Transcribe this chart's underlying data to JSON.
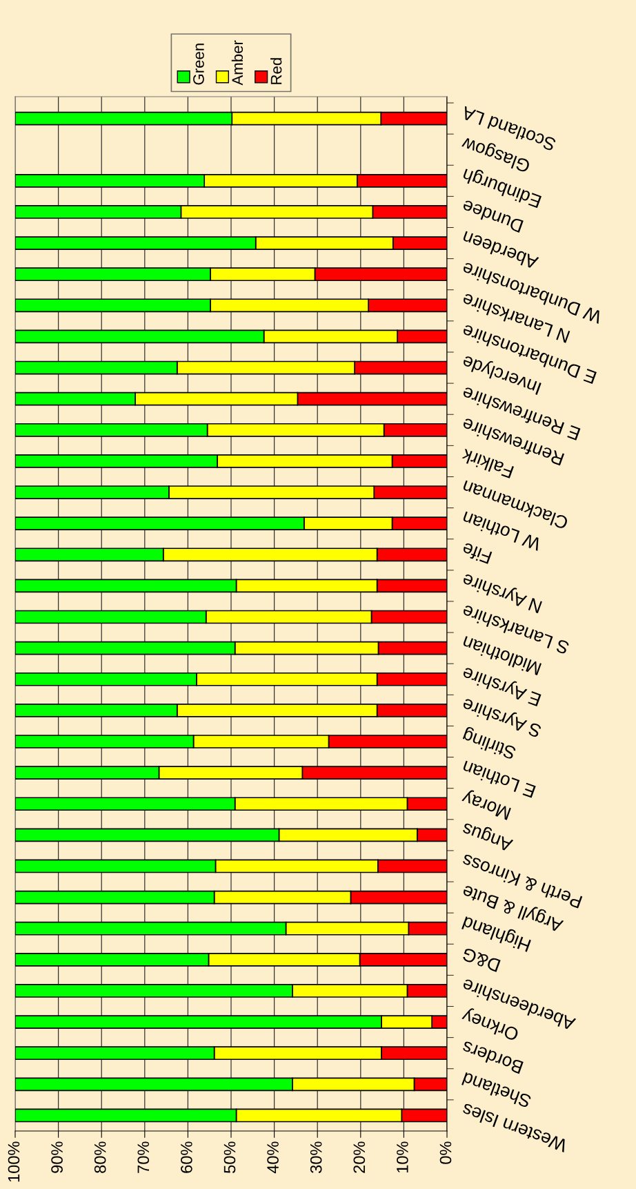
{
  "chart_data": {
    "type": "bar",
    "orientation": "horizontal",
    "stacked": true,
    "categories": [
      "Scotland LA",
      "Glasgow",
      "Edinburgh",
      "Dundee",
      "Aberdeen",
      "W Dunbartonshire",
      "N Lanarkshire",
      "E Dunbartonshire",
      "Inverclyde",
      "E Renfrewshire",
      "Renfrewshire",
      "Falkirk",
      "Clackmannan",
      "W Lothian",
      "Fife",
      "N Ayrshire",
      "S Lanarkshire",
      "Midlothian",
      "E Ayrshire",
      "S Ayrshire",
      "Stirling",
      "E Lothian",
      "Moray",
      "Angus",
      "Perth & Kinross",
      "Argyll & Bute",
      "Highland",
      "D&G",
      "Aberdeenshire",
      "Orkney",
      "Borders",
      "Shetland",
      "Western Isles"
    ],
    "series": [
      {
        "name": "Red",
        "color": "#ff0000",
        "values": [
          15.3,
          null,
          20.8,
          17.2,
          12.5,
          30.6,
          18.2,
          11.5,
          21.4,
          34.6,
          14.6,
          12.7,
          16.9,
          12.7,
          16.2,
          16.2,
          17.5,
          15.9,
          16.2,
          16.2,
          27.4,
          33.5,
          9.2,
          6.9,
          16.0,
          22.3,
          8.9,
          20.2,
          9.2,
          3.5,
          15.2,
          7.6,
          10.5
        ]
      },
      {
        "name": "Amber",
        "color": "#ffff00",
        "values": [
          34.5,
          null,
          35.4,
          44.4,
          31.8,
          24.2,
          36.6,
          30.9,
          41.1,
          37.6,
          40.9,
          40.5,
          47.5,
          20.4,
          49.5,
          32.6,
          38.3,
          33.2,
          41.8,
          46.3,
          31.3,
          33.2,
          39.9,
          32.0,
          37.6,
          31.6,
          28.4,
          35.0,
          26.6,
          11.7,
          38.7,
          28.2,
          38.3
        ]
      },
      {
        "name": "Green",
        "color": "#00ff00",
        "values": [
          50.2,
          null,
          43.8,
          38.4,
          55.7,
          45.2,
          45.2,
          57.6,
          37.5,
          27.8,
          44.5,
          46.8,
          35.6,
          66.9,
          34.3,
          51.2,
          44.2,
          50.9,
          42.0,
          37.5,
          41.3,
          33.3,
          50.9,
          61.1,
          46.4,
          46.1,
          62.7,
          44.8,
          64.2,
          84.8,
          46.1,
          64.2,
          51.2
        ]
      }
    ],
    "xlim": [
      100,
      0
    ],
    "xticks": [
      {
        "value": 100,
        "label": "100%"
      },
      {
        "value": 90,
        "label": "90%"
      },
      {
        "value": 80,
        "label": "80%"
      },
      {
        "value": 70,
        "label": "70%"
      },
      {
        "value": 60,
        "label": "60%"
      },
      {
        "value": 50,
        "label": "50%"
      },
      {
        "value": 40,
        "label": "40%"
      },
      {
        "value": 30,
        "label": "30%"
      },
      {
        "value": 20,
        "label": "20%"
      },
      {
        "value": 10,
        "label": "10%"
      },
      {
        "value": 0,
        "label": "0%"
      }
    ],
    "grid": "x",
    "legend": "top"
  }
}
